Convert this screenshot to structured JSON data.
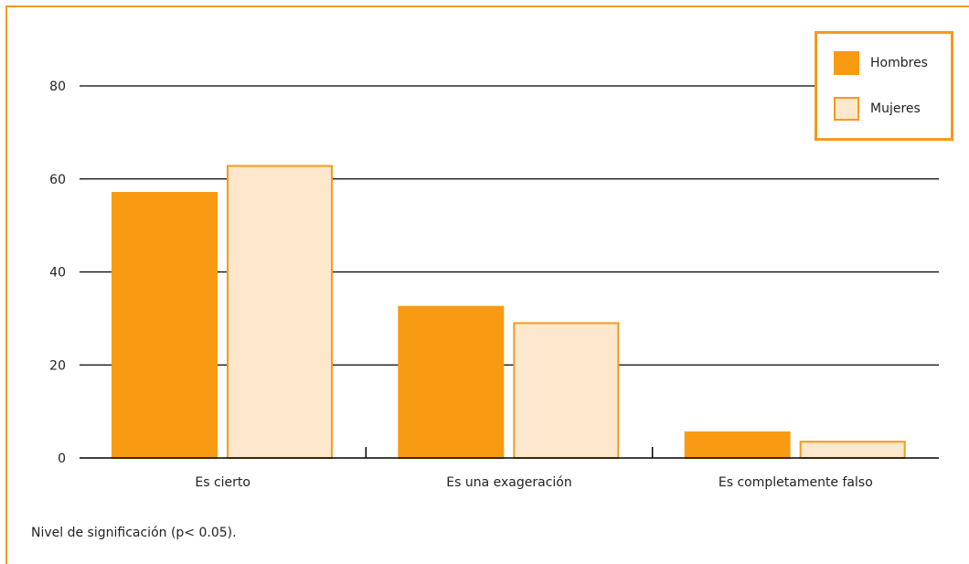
{
  "chart_data": {
    "type": "bar",
    "categories": [
      "Es cierto",
      "Es una exageración",
      "Es completamente falso"
    ],
    "series": [
      {
        "name": "Hombres",
        "values": [
          57,
          32.5,
          5.5
        ],
        "color": "#f89b12",
        "stroke": "#f89b12"
      },
      {
        "name": "Mujeres",
        "values": [
          62.8,
          29,
          3.5
        ],
        "color": "#fde8cd",
        "stroke": "#f59a1b"
      }
    ],
    "ylim": [
      0,
      80
    ],
    "yticks": [
      0,
      20,
      40,
      60,
      80
    ],
    "grid": true,
    "legend_position": "top-right"
  },
  "footnote": "Nivel de significación (p< 0.05).",
  "colors": {
    "frame": "#f59a1b",
    "grid": "#000000"
  }
}
